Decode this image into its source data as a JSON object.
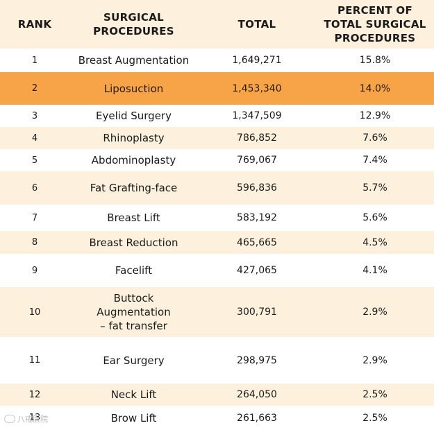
{
  "chart_data": {
    "type": "table",
    "columns": [
      "RANK",
      "SURGICAL PROCEDURES",
      "TOTAL",
      "PERCENT OF TOTAL SURGICAL PROCEDURES"
    ],
    "header": {
      "rank": "RANK",
      "procedure_line1": "SURGICAL",
      "procedure_line2": "PROCEDURES",
      "total": "TOTAL",
      "percent_line1": "PERCENT OF",
      "percent_line2": "TOTAL SURGICAL",
      "percent_line3": "PROCEDURES"
    },
    "rows": [
      {
        "rank": "1",
        "procedure": [
          "Breast Augmentation"
        ],
        "total": "1,649,271",
        "percent": "15.8%"
      },
      {
        "rank": "2",
        "procedure": [
          "Liposuction"
        ],
        "total": "1,453,340",
        "percent": "14.0%"
      },
      {
        "rank": "3",
        "procedure": [
          "Eyelid Surgery"
        ],
        "total": "1,347,509",
        "percent": "12.9%"
      },
      {
        "rank": "4",
        "procedure": [
          "Rhinoplasty"
        ],
        "total": "786,852",
        "percent": "7.6%"
      },
      {
        "rank": "5",
        "procedure": [
          "Abdominoplasty"
        ],
        "total": "769,067",
        "percent": "7.4%"
      },
      {
        "rank": "6",
        "procedure": [
          "Fat Grafting-face"
        ],
        "total": "596,836",
        "percent": "5.7%"
      },
      {
        "rank": "7",
        "procedure": [
          "Breast Lift"
        ],
        "total": "583,192",
        "percent": "5.6%"
      },
      {
        "rank": "8",
        "procedure": [
          "Breast Reduction"
        ],
        "total": "465,665",
        "percent": "4.5%"
      },
      {
        "rank": "9",
        "procedure": [
          "Facelift"
        ],
        "total": "427,065",
        "percent": "4.1%"
      },
      {
        "rank": "10",
        "procedure": [
          "Buttock",
          "Augmentation",
          "– fat transfer"
        ],
        "total": "300,791",
        "percent": "2.9%"
      },
      {
        "rank": "11",
        "procedure": [
          "Ear Surgery"
        ],
        "total": "298,975",
        "percent": "2.9%"
      },
      {
        "rank": "12",
        "procedure": [
          "Neck Lift"
        ],
        "total": "264,050",
        "percent": "2.5%"
      },
      {
        "rank": "13",
        "procedure": [
          "Brow Lift"
        ],
        "total": "261,663",
        "percent": "2.5%"
      }
    ],
    "highlighted_rank": "2",
    "colors": {
      "highlight": "#f6a447",
      "band_light": "#ffffff",
      "band_cream": "#fdf0dc"
    }
  },
  "watermark": {
    "text": "八戒医院"
  }
}
